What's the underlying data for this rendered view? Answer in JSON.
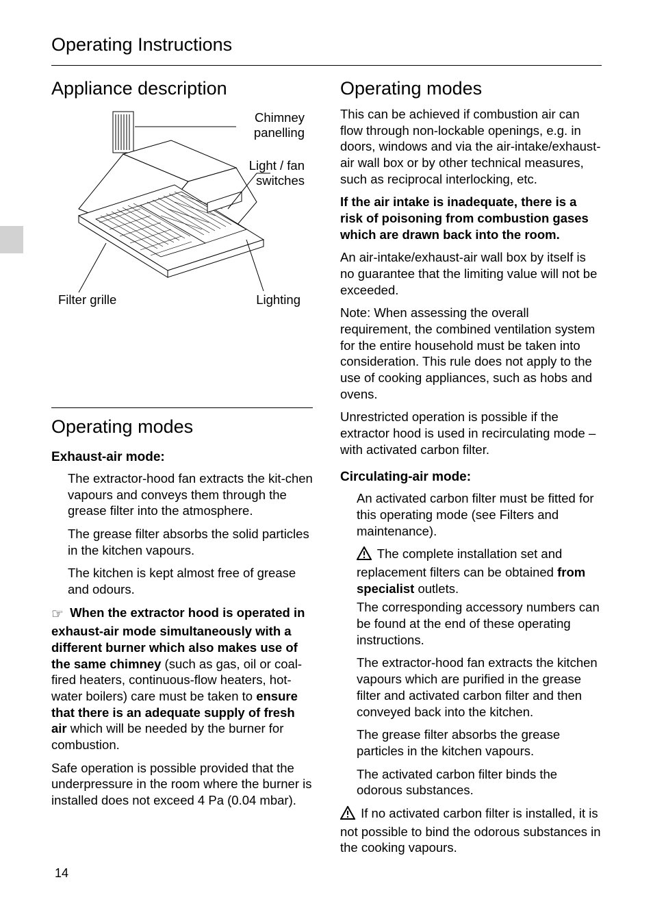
{
  "page_title": "Operating Instructions",
  "page_number": "14",
  "left": {
    "section1_title": "Appliance description",
    "diagram": {
      "label_chimney": "Chimney\npanelling",
      "label_switches": "Light / fan\nswitches",
      "label_filter": "Filter grille",
      "label_lighting": "Lighting"
    },
    "section2_title": "Operating modes",
    "sub_exhaust": "Exhaust-air mode:",
    "p1": "The extractor-hood fan extracts the kit-chen vapours and conveys them through the grease filter into the atmosphere.",
    "p2": "The grease filter absorbs the solid particles in the kitchen vapours.",
    "p3": "The kitchen is kept almost free of grease and odours.",
    "note1_bold1": "When the extractor hood is operated in exhaust-air mode simultaneously with a different burner which also makes use of the same chimney",
    "note1_mid": " (such as gas, oil or coal-fired heaters, continuous-flow heaters, hot-water boilers) care must be taken to ",
    "note1_bold2": "ensure that there is an adequate supply of fresh air",
    "note1_end": " which will be needed by the burner for combustion.",
    "p4": "Safe operation is possible provided that the underpressure in the room where the burner is installed does not exceed 4 Pa (0.04 mbar)."
  },
  "right": {
    "section_title": "Operating modes",
    "p1": "This can be achieved if combustion air can flow through non-lockable openings, e.g. in doors, windows and via the air-intake/exhaust-air wall box or by other technical measures, such as reciprocal interlocking, etc.",
    "p2_bold": "If the air intake is inadequate, there is a risk of poisoning from combustion gases which are drawn back into the room.",
    "p3": "An air-intake/exhaust-air wall box by itself is no guarantee that the limiting value will not be exceeded.",
    "p4": "Note: When assessing the overall requirement, the combined ventilation system for the entire household must be taken into consideration. This rule does not apply to the use of cooking appliances, such as hobs and ovens.",
    "p5": "Unrestricted operation is possible if the extractor hood is used in recirculating mode – with activated carbon filter.",
    "sub_circ": "Circulating-air mode:",
    "c1": "An activated carbon filter must be fitted for this operating mode (see Filters and maintenance).",
    "c2_pre": " The complete installation set and replacement filters can be obtained ",
    "c2_bold": "from specialist",
    "c2_post": " outlets.",
    "c2b": "The corresponding accessory numbers can be found at the end of these operating instructions.",
    "c3": "The extractor-hood fan extracts the kitchen vapours which are purified in the grease filter and activated carbon filter and then conveyed back into the kitchen.",
    "c4": "The grease filter absorbs the grease particles in the kitchen vapours.",
    "c5": "The activated carbon filter binds the odorous substances.",
    "c6": " If no activated carbon filter is installed, it is not possible to bind the odorous substances in the cooking vapours."
  }
}
